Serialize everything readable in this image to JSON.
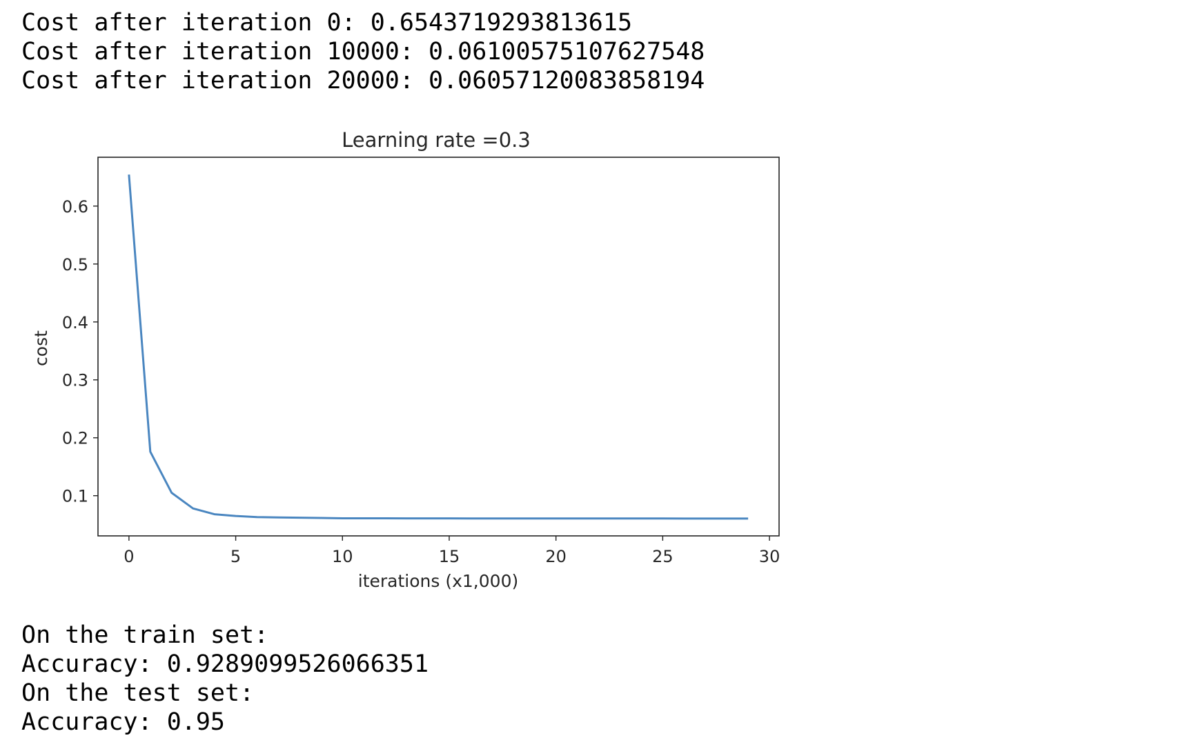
{
  "top_output": [
    "Cost after iteration 0: 0.6543719293813615",
    "Cost after iteration 10000: 0.06100575107627548",
    "Cost after iteration 20000: 0.06057120083858194"
  ],
  "bottom_output": [
    "On the train set:",
    "Accuracy: 0.9289099526066351",
    "On the test set:",
    "Accuracy: 0.95"
  ],
  "chart_data": {
    "type": "line",
    "title": "Learning rate =0.3",
    "xlabel": "iterations (x1,000)",
    "ylabel": "cost",
    "xlim": [
      -1.45,
      30.45
    ],
    "ylim": [
      0.0306,
      0.6843
    ],
    "x_ticks": [
      0,
      5,
      10,
      15,
      20,
      25,
      30
    ],
    "x_tick_labels": [
      "0",
      "5",
      "10",
      "15",
      "20",
      "25",
      "30"
    ],
    "y_ticks": [
      0.1,
      0.2,
      0.3,
      0.4,
      0.5,
      0.6
    ],
    "y_tick_labels": [
      "0.1",
      "0.2",
      "0.3",
      "0.4",
      "0.5",
      "0.6"
    ],
    "grid": false,
    "series": [
      {
        "color": "#4a86c0",
        "x": [
          0,
          1,
          2,
          3,
          4,
          5,
          6,
          7,
          8,
          9,
          10,
          11,
          12,
          13,
          14,
          15,
          16,
          17,
          18,
          19,
          20,
          21,
          22,
          23,
          24,
          25,
          26,
          27,
          28,
          29
        ],
        "y": [
          0.6544,
          0.176,
          0.105,
          0.078,
          0.068,
          0.065,
          0.063,
          0.0625,
          0.062,
          0.0615,
          0.061,
          0.0609,
          0.0609,
          0.0608,
          0.0608,
          0.0608,
          0.0607,
          0.0607,
          0.0607,
          0.0606,
          0.0606,
          0.0606,
          0.0606,
          0.0606,
          0.0606,
          0.0606,
          0.0605,
          0.0605,
          0.0605,
          0.0605
        ]
      }
    ]
  }
}
